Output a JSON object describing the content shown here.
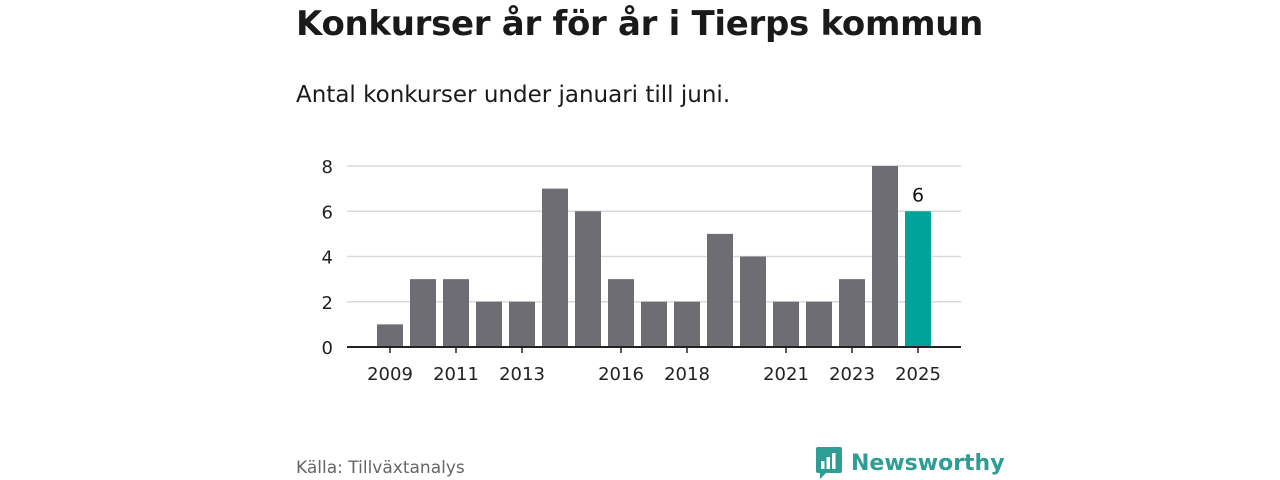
{
  "title": "Konkurser år för år i Tierps kommun",
  "subtitle": "Antal konkurser under januari till juni.",
  "source": "Källa: Tillväxtanalys",
  "brand": {
    "name": "Newsworthy",
    "logo_icon": "bar-chart-speech-bubble-icon"
  },
  "colors": {
    "bar": "#6e6d73",
    "highlight": "#00a39a",
    "grid": "#d9d9d9",
    "axis": "#222222",
    "brand": "#2e9e95"
  },
  "chart_data": {
    "type": "bar",
    "title": "Konkurser år för år i Tierps kommun",
    "subtitle": "Antal konkurser under januari till juni.",
    "categories": [
      "2009",
      "2010",
      "2011",
      "2012",
      "2013",
      "2014",
      "2015",
      "2016",
      "2017",
      "2018",
      "2019",
      "2020",
      "2021",
      "2022",
      "2023",
      "2024",
      "2025"
    ],
    "values": [
      1,
      3,
      3,
      2,
      2,
      7,
      6,
      3,
      2,
      2,
      5,
      4,
      2,
      2,
      3,
      8,
      6
    ],
    "x_tick_labels": [
      "2009",
      "2011",
      "2013",
      "2016",
      "2018",
      "2021",
      "2023",
      "2025"
    ],
    "y_ticks": [
      "0",
      "2",
      "4",
      "6",
      "8"
    ],
    "ylim": [
      0,
      8
    ],
    "highlight_category": "2025",
    "highlight_label": "6",
    "grid": true,
    "xlabel": "",
    "ylabel": ""
  }
}
